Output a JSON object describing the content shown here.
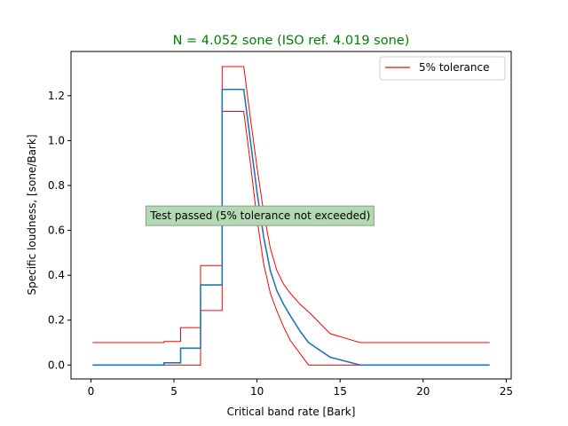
{
  "chart_data": {
    "type": "line",
    "title": "N = 4.052 sone (ISO ref. 4.019 sone)",
    "title_color": "#008000",
    "xlabel": "Critical band rate [Bark]",
    "ylabel": "Specific loudness, [sone/Bark]",
    "xlim": [
      -1.2,
      25.3
    ],
    "ylim": [
      -0.062,
      1.397
    ],
    "xticks": [
      0,
      5,
      10,
      15,
      20,
      25
    ],
    "yticks": [
      0.0,
      0.2,
      0.4,
      0.6,
      0.8,
      1.0,
      1.2
    ],
    "grid": false,
    "legend": {
      "placement": "top-right",
      "entries": [
        {
          "label": "5% tolerance",
          "color": "#ff0000"
        }
      ]
    },
    "annotation": {
      "text": "Test passed (5% tolerance not exceeded)",
      "x": 10.2,
      "y": 0.665,
      "background": "#b3d9b3",
      "border": "#8a9a8a"
    },
    "series": [
      {
        "role": "upper_tolerance",
        "color": "#ff0000",
        "x": [
          0.1,
          4.4,
          4.4,
          5.4,
          5.4,
          6.6,
          6.6,
          7.9,
          7.9,
          9.2,
          9.6,
          10.0,
          10.4,
          10.8,
          11.2,
          11.6,
          12.0,
          12.6,
          13.2,
          14.4,
          16.2,
          24.0
        ],
        "y": [
          0.1,
          0.1,
          0.105,
          0.105,
          0.167,
          0.167,
          0.443,
          0.443,
          1.33,
          1.33,
          1.1,
          0.88,
          0.68,
          0.52,
          0.42,
          0.36,
          0.32,
          0.27,
          0.23,
          0.14,
          0.1,
          0.1
        ]
      },
      {
        "role": "lower_tolerance",
        "color": "#ff0000",
        "x": [
          0.1,
          6.6,
          6.6,
          7.9,
          7.9,
          9.2,
          9.6,
          10.0,
          10.4,
          10.8,
          11.2,
          11.6,
          12.0,
          12.6,
          13.1,
          16.0,
          24.0
        ],
        "y": [
          0.0,
          0.0,
          0.243,
          0.243,
          1.13,
          1.13,
          0.9,
          0.65,
          0.45,
          0.32,
          0.24,
          0.17,
          0.11,
          0.05,
          0.0,
          0.0,
          0.0
        ]
      },
      {
        "role": "specific_loudness",
        "color": "#1f77b4",
        "x": [
          0.1,
          4.4,
          4.4,
          5.4,
          5.4,
          6.6,
          6.6,
          7.9,
          7.9,
          9.2,
          9.6,
          10.0,
          10.4,
          10.8,
          11.2,
          11.6,
          12.0,
          12.6,
          13.1,
          14.4,
          16.2,
          24.0
        ],
        "y": [
          0.0,
          0.0,
          0.01,
          0.01,
          0.075,
          0.075,
          0.357,
          0.357,
          1.228,
          1.228,
          1.0,
          0.77,
          0.57,
          0.42,
          0.33,
          0.27,
          0.22,
          0.15,
          0.1,
          0.035,
          0.0,
          0.0
        ]
      }
    ]
  }
}
